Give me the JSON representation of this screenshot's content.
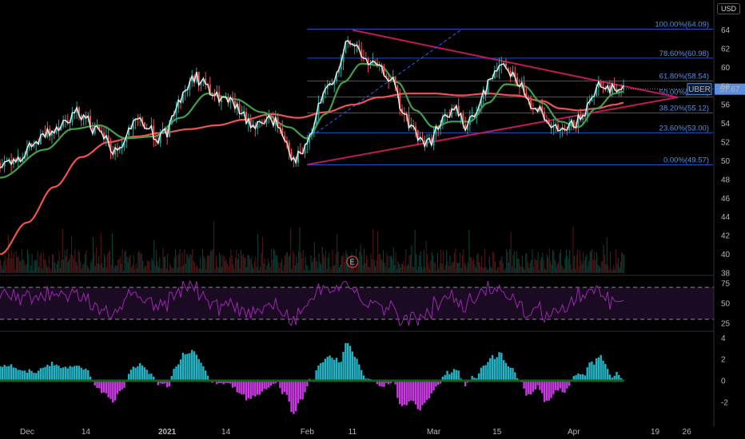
{
  "currency_label": "USD",
  "colors": {
    "background": "#000000",
    "fib_line": "#2962ff",
    "fib_text": "#5b8fe0",
    "triangle": "#c2185b",
    "sma_slow": "#ef5350",
    "sma_fast": "#43a047",
    "price_line": "#ffffff",
    "rsi": "#9c27b0",
    "hist_pos": "#26c6da",
    "hist_neg": "#e040fb",
    "zero_line": "#1b5e20",
    "last_price_bg": "#5b8fe0"
  },
  "chart_data": [
    {
      "type": "line",
      "panel": "price",
      "symbol": "UBER",
      "last_price": "57.67",
      "y_ticks": [
        38,
        40,
        42,
        44,
        46,
        48,
        50,
        52,
        54,
        56,
        58,
        60,
        62,
        64
      ],
      "ylim": [
        38,
        65.5
      ],
      "x_ticks": [
        {
          "label": "Dec",
          "day": 0
        },
        {
          "label": "14",
          "day": 13
        },
        {
          "label": "2021",
          "day": 31
        },
        {
          "label": "14",
          "day": 44
        },
        {
          "label": "Feb",
          "day": 62
        },
        {
          "label": "11",
          "day": 72
        },
        {
          "label": "Mar",
          "day": 90
        },
        {
          "label": "15",
          "day": 104
        },
        {
          "label": "Apr",
          "day": 121
        },
        {
          "label": "19",
          "day": 139
        },
        {
          "label": "26",
          "day": 146
        }
      ],
      "xlim": [
        -6,
        152
      ],
      "price_keypoints": [
        [
          -6,
          49.8
        ],
        [
          -2,
          50.4
        ],
        [
          2,
          51.8
        ],
        [
          4,
          52.8
        ],
        [
          7,
          53.8
        ],
        [
          9,
          54.6
        ],
        [
          11,
          55.2
        ],
        [
          13,
          54.8
        ],
        [
          15,
          53.2
        ],
        [
          17,
          52.6
        ],
        [
          19,
          51.0
        ],
        [
          21,
          51.6
        ],
        [
          23,
          53.6
        ],
        [
          25,
          54.2
        ],
        [
          27,
          53.4
        ],
        [
          29,
          52.4
        ],
        [
          31,
          53.0
        ],
        [
          33,
          55.8
        ],
        [
          35,
          57.6
        ],
        [
          37,
          59.0
        ],
        [
          39,
          58.4
        ],
        [
          41,
          57.0
        ],
        [
          43,
          56.6
        ],
        [
          45,
          56.2
        ],
        [
          47,
          55.4
        ],
        [
          49,
          54.0
        ],
        [
          51,
          53.8
        ],
        [
          53,
          54.4
        ],
        [
          55,
          54.2
        ],
        [
          57,
          52.4
        ],
        [
          59,
          50.2
        ],
        [
          61,
          50.8
        ],
        [
          63,
          53.0
        ],
        [
          65,
          56.4
        ],
        [
          67,
          58.0
        ],
        [
          69,
          60.0
        ],
        [
          71,
          62.6
        ],
        [
          73,
          62.2
        ],
        [
          75,
          60.6
        ],
        [
          77,
          60.2
        ],
        [
          79,
          59.4
        ],
        [
          81,
          58.4
        ],
        [
          83,
          55.2
        ],
        [
          85,
          53.8
        ],
        [
          87,
          52.2
        ],
        [
          89,
          52.0
        ],
        [
          91,
          53.4
        ],
        [
          93,
          55.0
        ],
        [
          95,
          55.4
        ],
        [
          97,
          53.8
        ],
        [
          99,
          54.8
        ],
        [
          101,
          57.4
        ],
        [
          103,
          59.0
        ],
        [
          105,
          60.6
        ],
        [
          107,
          59.6
        ],
        [
          109,
          58.2
        ],
        [
          111,
          56.2
        ],
        [
          113,
          55.8
        ],
        [
          115,
          53.8
        ],
        [
          117,
          53.4
        ],
        [
          119,
          53.0
        ],
        [
          121,
          54.0
        ],
        [
          123,
          54.6
        ],
        [
          125,
          57.2
        ],
        [
          127,
          58.4
        ],
        [
          129,
          57.6
        ],
        [
          131,
          58.0
        ],
        [
          132,
          57.67
        ]
      ],
      "sma_fast_keypoints": [
        [
          -6,
          48.2
        ],
        [
          4,
          51.2
        ],
        [
          10,
          53.4
        ],
        [
          16,
          53.8
        ],
        [
          22,
          52.4
        ],
        [
          28,
          52.6
        ],
        [
          34,
          54.6
        ],
        [
          40,
          57.2
        ],
        [
          46,
          56.6
        ],
        [
          52,
          55.2
        ],
        [
          58,
          53.6
        ],
        [
          62,
          52.4
        ],
        [
          66,
          55.0
        ],
        [
          70,
          58.4
        ],
        [
          74,
          60.4
        ],
        [
          78,
          60.2
        ],
        [
          82,
          58.4
        ],
        [
          86,
          55.4
        ],
        [
          90,
          53.6
        ],
        [
          94,
          54.2
        ],
        [
          98,
          54.2
        ],
        [
          102,
          56.2
        ],
        [
          106,
          58.2
        ],
        [
          110,
          58.0
        ],
        [
          114,
          56.2
        ],
        [
          118,
          54.2
        ],
        [
          122,
          53.6
        ],
        [
          126,
          55.6
        ],
        [
          130,
          57.2
        ],
        [
          132,
          57.4
        ]
      ],
      "sma_slow_keypoints": [
        [
          -6,
          40.0
        ],
        [
          0,
          43.4
        ],
        [
          6,
          47.2
        ],
        [
          12,
          50.4
        ],
        [
          18,
          52.0
        ],
        [
          24,
          52.6
        ],
        [
          30,
          53.0
        ],
        [
          36,
          53.4
        ],
        [
          42,
          53.8
        ],
        [
          48,
          54.4
        ],
        [
          54,
          55.0
        ],
        [
          60,
          54.6
        ],
        [
          66,
          55.2
        ],
        [
          72,
          56.0
        ],
        [
          78,
          56.8
        ],
        [
          84,
          57.2
        ],
        [
          90,
          57.2
        ],
        [
          96,
          57.0
        ],
        [
          102,
          57.2
        ],
        [
          108,
          57.0
        ],
        [
          114,
          56.4
        ],
        [
          118,
          55.6
        ],
        [
          122,
          55.4
        ],
        [
          126,
          55.6
        ],
        [
          130,
          56.0
        ],
        [
          132,
          56.2
        ]
      ],
      "fib_levels": [
        {
          "label": "100.00%(64.09)",
          "value": 64.09
        },
        {
          "label": "78.60%(60.98)",
          "value": 60.98
        },
        {
          "label": "61.80%(58.54)",
          "value": 58.54
        },
        {
          "label": "50.00%(56.83)",
          "value": 56.83
        },
        {
          "label": "38.20%(55.12)",
          "value": 55.12
        },
        {
          "label": "23.60%(53.00)",
          "value": 53.0
        },
        {
          "label": "0.00%(49.57)",
          "value": 49.57
        }
      ],
      "triangle": {
        "upper": [
          [
            72,
            64.0
          ],
          [
            132,
            58.6
          ]
        ],
        "lower": [
          [
            62,
            49.6
          ],
          [
            132,
            55.2
          ]
        ],
        "apex": [
          144,
          56.8
        ]
      },
      "trend_dashed": [
        [
          64,
          53.0
        ],
        [
          96,
          64.0
        ]
      ],
      "earnings_marker": {
        "label": "E",
        "day": 72
      }
    },
    {
      "type": "line",
      "panel": "rsi",
      "y_ticks": [
        25,
        50,
        75
      ],
      "bands": [
        30,
        70
      ],
      "ylim": [
        18,
        82
      ]
    },
    {
      "type": "bar",
      "panel": "histogram",
      "y_ticks": [
        -2,
        0,
        2,
        4
      ],
      "ylim": [
        -3.2,
        4.4
      ]
    }
  ]
}
